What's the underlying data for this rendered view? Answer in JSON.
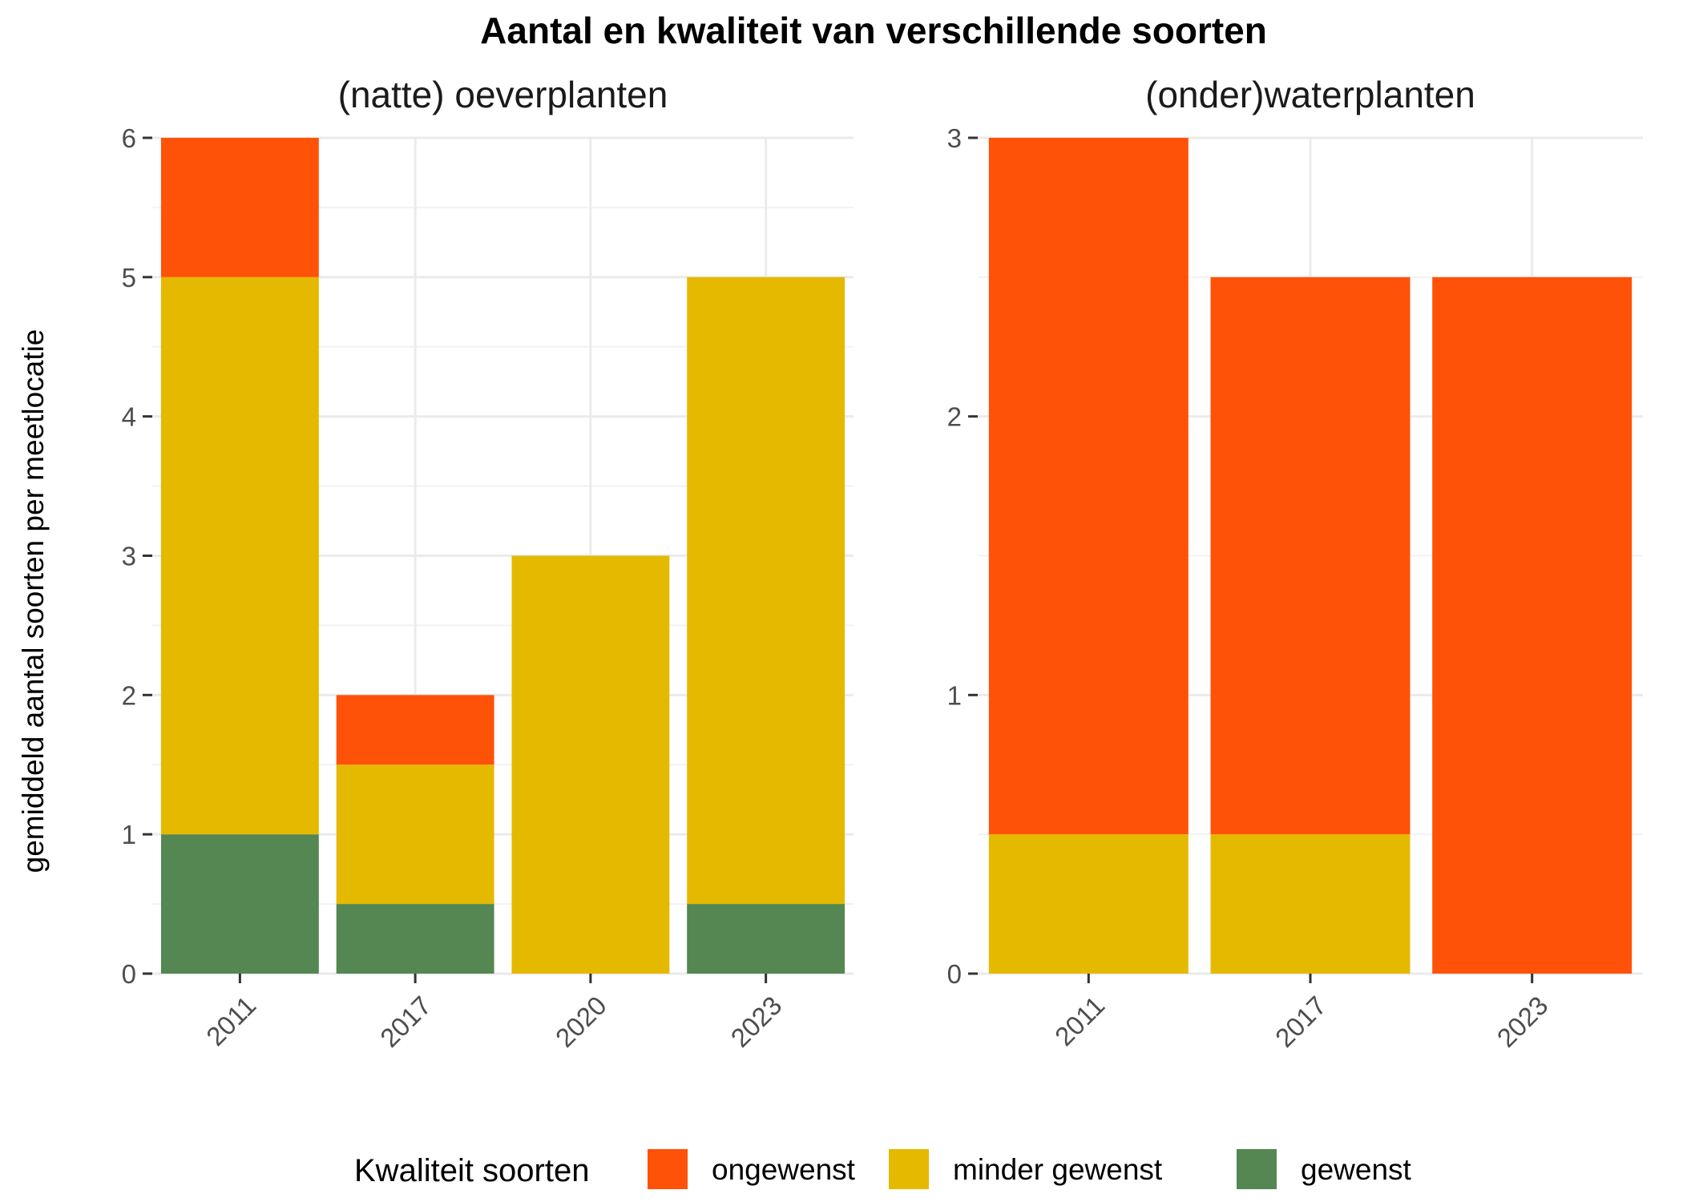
{
  "chart_data": {
    "type": "bar",
    "stacked": true,
    "title": "Aantal en kwaliteit van verschillende soorten",
    "ylabel": "gemiddeld aantal soorten per meetlocatie",
    "legend": {
      "title": "Kwaliteit soorten",
      "position": "bottom",
      "entries": [
        {
          "label": "ongewenst",
          "color": "#FF5209"
        },
        {
          "label": "minder gewenst",
          "color": "#E5B900"
        },
        {
          "label": "gewenst",
          "color": "#548751"
        }
      ]
    },
    "grid": true,
    "panels": [
      {
        "title": "(natte) oeverplanten",
        "categories": [
          "2011",
          "2017",
          "2020",
          "2023"
        ],
        "ylim": [
          0,
          6
        ],
        "yticks": [
          "0",
          "1",
          "2",
          "3",
          "4",
          "5",
          "6"
        ],
        "series": [
          {
            "name": "gewenst",
            "values": [
              1,
              0.5,
              0,
              0.5
            ]
          },
          {
            "name": "minder gewenst",
            "values": [
              4,
              1,
              3,
              4.5
            ]
          },
          {
            "name": "ongewenst",
            "values": [
              1,
              0.5,
              0,
              0
            ]
          }
        ]
      },
      {
        "title": "(onder)waterplanten",
        "categories": [
          "2011",
          "2017",
          "2023"
        ],
        "ylim": [
          0,
          3
        ],
        "yticks": [
          "0",
          "1",
          "2",
          "3"
        ],
        "series": [
          {
            "name": "gewenst",
            "values": [
              0,
              0,
              0
            ]
          },
          {
            "name": "minder gewenst",
            "values": [
              0.5,
              0.5,
              0
            ]
          },
          {
            "name": "ongewenst",
            "values": [
              2.5,
              2,
              2.5
            ]
          }
        ]
      }
    ]
  }
}
